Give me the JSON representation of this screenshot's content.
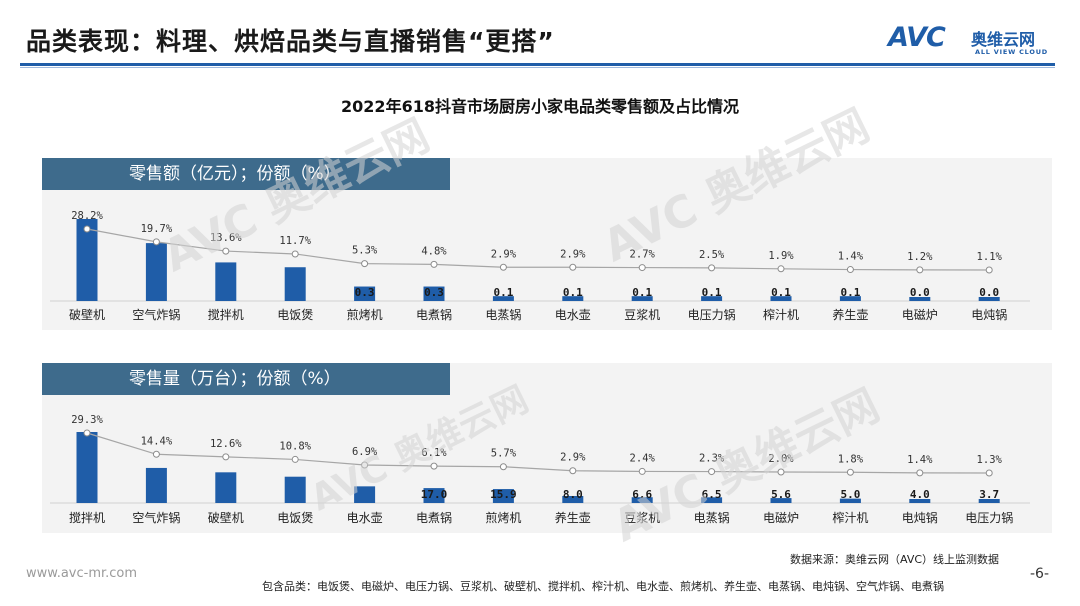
{
  "page": {
    "title": "品类表现：料理、烘焙品类与直播销售“更搭”",
    "logo": {
      "mark": "AVC",
      "name_cn": "奥维云网",
      "name_en": "ALL VIEW CLOUD"
    },
    "watermark_text": "AVC 奥维云网",
    "website": "www.avc-mr.com",
    "page_number": "-6-",
    "source": "数据来源：奥维云网（AVC）线上监测数据",
    "categories_note": "包含品类：电饭煲、电磁炉、电压力锅、豆浆机、破壁机、搅拌机、榨汁机、电水壶、煎烤机、养生壶、电蒸锅、电炖锅、空气炸锅、电煮锅"
  },
  "colors": {
    "bar": "#1f5da8",
    "line": "#a6a6a6",
    "header": "#3e6b8c",
    "panel": "#f3f3f3"
  },
  "chart_data": [
    {
      "type": "bar+line",
      "title": "2022年618抖音市场厨房小家电品类零售额及占比情况",
      "panel_title": "零售额（亿元）；份额（%）",
      "categories": [
        "破壁机",
        "空气炸锅",
        "搅拌机",
        "电饭煲",
        "煎烤机",
        "电煮锅",
        "电蒸锅",
        "电水壶",
        "豆浆机",
        "电压力锅",
        "榨汁机",
        "养生壶",
        "电磁炉",
        "电炖锅"
      ],
      "bar_labels": [
        "",
        "",
        "",
        "",
        "0.3",
        "0.3",
        "0.1",
        "0.1",
        "0.1",
        "0.1",
        "0.1",
        "0.1",
        "0.0",
        "0.0"
      ],
      "bar_values": [
        1.7,
        1.2,
        0.8,
        0.7,
        0.3,
        0.3,
        0.1,
        0.1,
        0.1,
        0.1,
        0.1,
        0.1,
        0.0,
        0.0
      ],
      "share_labels": [
        "28.2%",
        "19.7%",
        "13.6%",
        "11.7%",
        "5.3%",
        "4.8%",
        "2.9%",
        "2.9%",
        "2.7%",
        "2.5%",
        "1.9%",
        "1.4%",
        "1.2%",
        "1.1%"
      ],
      "share_values": [
        28.2,
        19.7,
        13.6,
        11.7,
        5.3,
        4.8,
        2.9,
        2.9,
        2.7,
        2.5,
        1.9,
        1.4,
        1.2,
        1.1
      ]
    },
    {
      "type": "bar+line",
      "title": "",
      "panel_title": "零售量（万台）；份额（%）",
      "categories": [
        "搅拌机",
        "空气炸锅",
        "破壁机",
        "电饭煲",
        "电水壶",
        "电煮锅",
        "煎烤机",
        "养生壶",
        "豆浆机",
        "电蒸锅",
        "电磁炉",
        "榨汁机",
        "电炖锅",
        "电压力锅"
      ],
      "bar_labels": [
        "",
        "",
        "",
        "",
        "",
        "17.0",
        "15.9",
        "8.0",
        "6.6",
        "6.5",
        "5.6",
        "5.0",
        "4.0",
        "3.7"
      ],
      "bar_values": [
        81.0,
        40.0,
        35.0,
        30.0,
        19.0,
        17.0,
        15.9,
        8.0,
        6.6,
        6.5,
        5.6,
        5.0,
        4.0,
        3.7
      ],
      "share_labels": [
        "29.3%",
        "14.4%",
        "12.6%",
        "10.8%",
        "6.9%",
        "6.1%",
        "5.7%",
        "2.9%",
        "2.4%",
        "2.3%",
        "2.0%",
        "1.8%",
        "1.4%",
        "1.3%"
      ],
      "share_values": [
        29.3,
        14.4,
        12.6,
        10.8,
        6.9,
        6.1,
        5.7,
        2.9,
        2.4,
        2.3,
        2.0,
        1.8,
        1.4,
        1.3
      ]
    }
  ]
}
